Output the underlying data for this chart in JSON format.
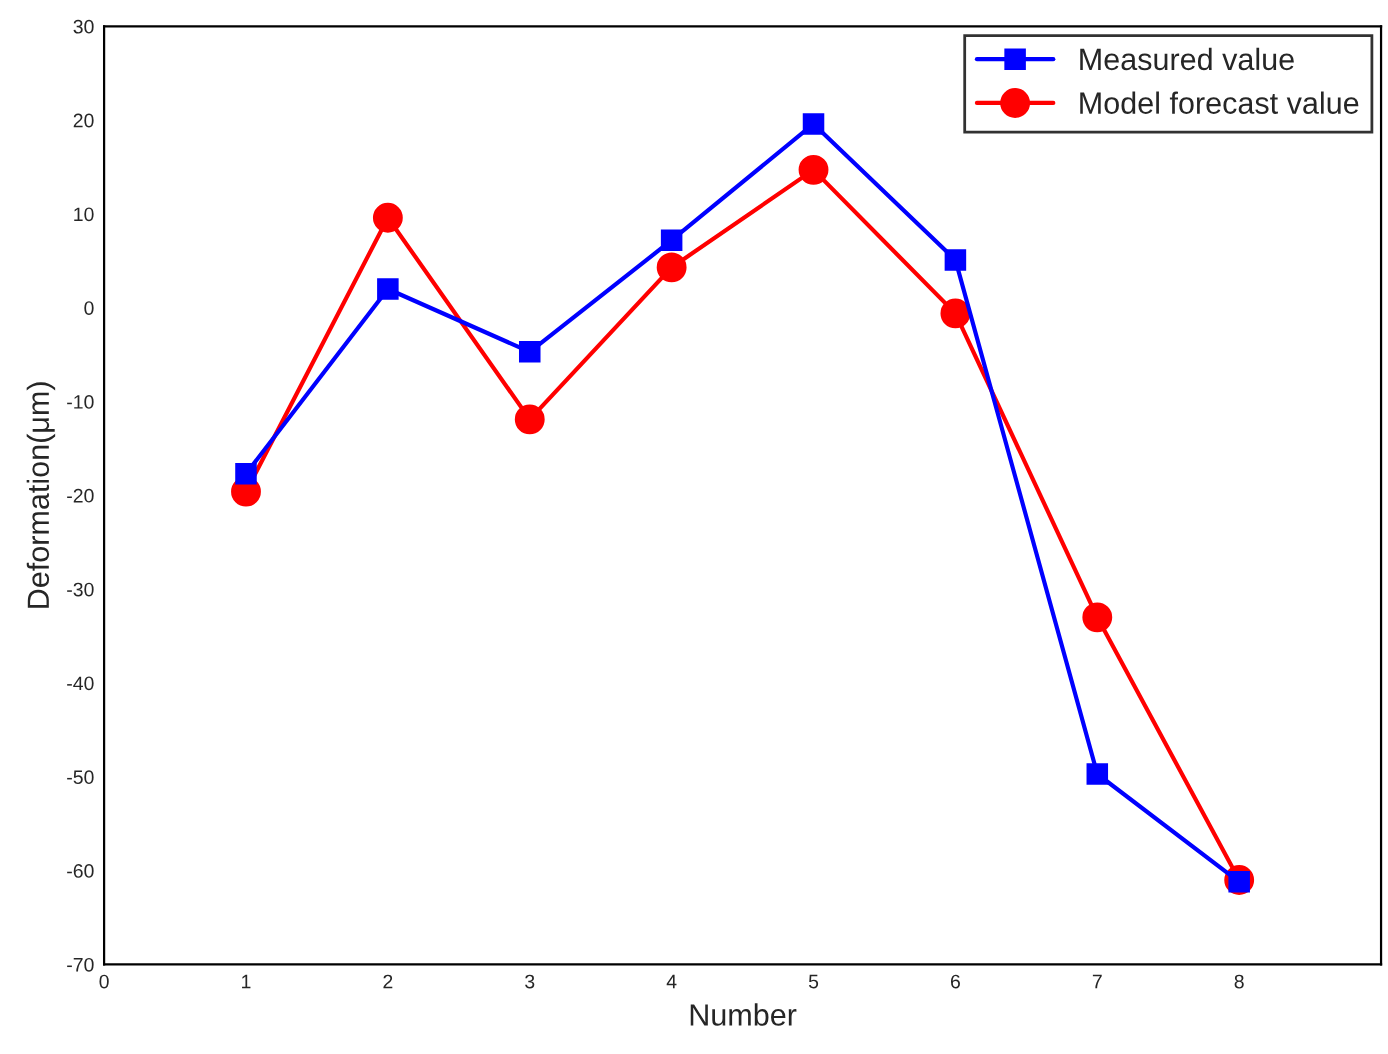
{
  "chart_data": {
    "type": "line",
    "xlabel": "Number",
    "ylabel": "Deformation(μm)",
    "x": [
      1,
      2,
      3,
      4,
      5,
      6,
      7,
      8
    ],
    "series": [
      {
        "name": "Measured value",
        "color": "#0000ff",
        "marker": "square",
        "values": [
          -17.7,
          2,
          -4.7,
          7.2,
          19.6,
          5.1,
          -49.7,
          -61.2
        ]
      },
      {
        "name": "Model forecast value",
        "color": "#ff0000",
        "marker": "circle",
        "values": [
          -19.6,
          9.6,
          -11.9,
          4.3,
          14.7,
          -0.6,
          -33,
          -61
        ]
      }
    ],
    "xlim": [
      0,
      9
    ],
    "xticks": [
      0,
      1,
      2,
      3,
      4,
      5,
      6,
      7,
      8
    ],
    "ylim": [
      -70,
      30
    ],
    "yticks": [
      -70,
      -60,
      -50,
      -40,
      -30,
      -20,
      -10,
      0,
      10,
      20,
      30
    ],
    "grid": false,
    "legend": "top right",
    "line_style": "solid"
  }
}
